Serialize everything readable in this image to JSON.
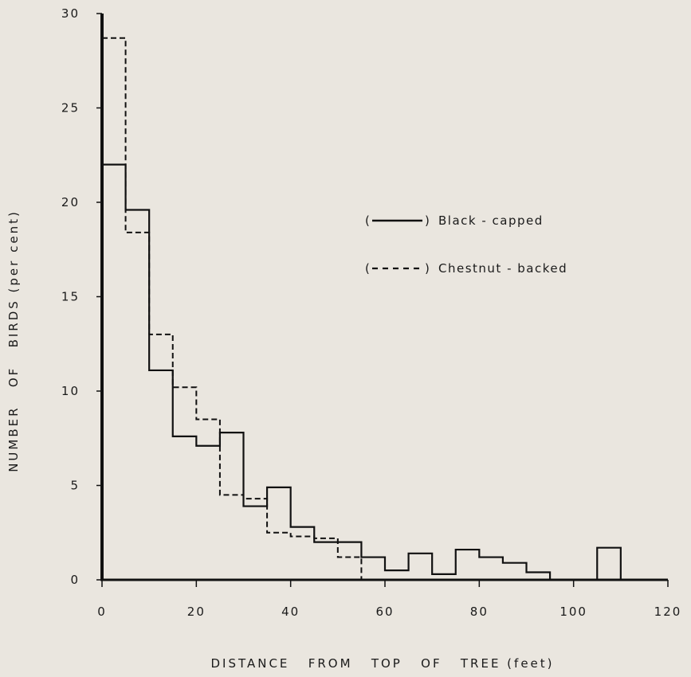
{
  "chart_data": {
    "type": "step-histogram",
    "xlabel": "DISTANCE   FROM   TOP   OF   TREE (feet)",
    "ylabel": "NUMBER   OF   BIRDS (per cent)",
    "xlim": [
      0,
      120
    ],
    "ylim": [
      0,
      30
    ],
    "x_ticks": [
      0,
      20,
      40,
      60,
      80,
      100,
      120
    ],
    "y_ticks": [
      0,
      5,
      10,
      15,
      20,
      25,
      30
    ],
    "x_tick_labels": [
      "0",
      "20",
      "40",
      "60",
      "80",
      "100",
      "120"
    ],
    "y_tick_labels": [
      "0",
      "5",
      "10",
      "15",
      "20",
      "25",
      "30"
    ],
    "grid": false,
    "legend_position": "right",
    "series": [
      {
        "name": "Black-capped",
        "legend_label": "Black - capped",
        "style": "solid",
        "bins": [
          0,
          5,
          10,
          15,
          20,
          25,
          30,
          35,
          40,
          45,
          50,
          55,
          60,
          65,
          70,
          75,
          80,
          85,
          90,
          95,
          100,
          105,
          110
        ],
        "values": [
          22.0,
          19.6,
          11.1,
          7.6,
          7.1,
          7.8,
          3.9,
          4.9,
          2.8,
          2.0,
          2.0,
          1.2,
          0.5,
          1.4,
          0.3,
          1.6,
          1.2,
          0.9,
          0.4,
          0.0,
          0.0,
          1.7
        ]
      },
      {
        "name": "Chestnut-backed",
        "legend_label": "Chestnut - backed",
        "style": "dashed",
        "bins": [
          0,
          5,
          10,
          15,
          20,
          25,
          30,
          35,
          40,
          45,
          50,
          55
        ],
        "values": [
          28.7,
          18.4,
          13.0,
          10.2,
          8.5,
          4.5,
          4.3,
          2.5,
          2.3,
          2.2,
          1.2
        ]
      }
    ]
  },
  "legend": {
    "open_paren": "(",
    "close_paren": ")"
  }
}
